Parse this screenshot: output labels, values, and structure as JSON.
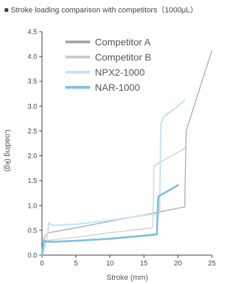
{
  "chart_data": {
    "type": "line",
    "title": "■ Stroke loading comparison with competitors（1000μL）",
    "xlabel": "Stroke (mm)",
    "ylabel": "Loading (kg)",
    "xlim": [
      0,
      25
    ],
    "ylim": [
      0,
      4.5
    ],
    "xticks": [
      0,
      5,
      10,
      15,
      20,
      25
    ],
    "yticks": [
      "0.0",
      "0.5",
      "1.0",
      "1.5",
      "2.0",
      "2.5",
      "3.0",
      "3.5",
      "4.0",
      "4.5"
    ],
    "legend_position": "top-left",
    "series": [
      {
        "name": "Competitor A",
        "color": "#a6a6a6",
        "width": 1.3,
        "x": [
          0.0,
          0.2,
          0.5,
          1.0,
          5,
          10,
          16.5,
          21.0,
          21.2,
          25
        ],
        "y": [
          0.0,
          0.3,
          0.4,
          0.45,
          0.55,
          0.68,
          0.85,
          0.97,
          2.5,
          4.12
        ]
      },
      {
        "name": "Competitor B",
        "color": "#cccccc",
        "width": 1.3,
        "x": [
          0.0,
          0.3,
          1.0,
          5,
          10,
          16.3,
          16.5,
          21.0
        ],
        "y": [
          0.0,
          0.25,
          0.3,
          0.36,
          0.45,
          0.55,
          1.8,
          2.15
        ]
      },
      {
        "name": "NPX2-1000",
        "color": "#c5e3f5",
        "width": 2.2,
        "x": [
          0.0,
          0.7,
          1.0,
          1.5,
          5,
          10,
          15,
          17.3,
          17.5,
          18.0,
          20.0,
          21.0
        ],
        "y": [
          0.0,
          0.3,
          0.65,
          0.6,
          0.62,
          0.7,
          0.8,
          0.84,
          2.65,
          2.8,
          3.0,
          3.12
        ]
      },
      {
        "name": "NAR-1000",
        "color": "#7fbfe3",
        "width": 2.8,
        "x": [
          0.0,
          0.3,
          0.7,
          2,
          5,
          10,
          15,
          16.9,
          17.0,
          17.1,
          18.0,
          20.0
        ],
        "y": [
          0.0,
          0.3,
          0.27,
          0.27,
          0.29,
          0.33,
          0.39,
          0.42,
          0.8,
          1.18,
          1.25,
          1.41
        ]
      }
    ]
  }
}
